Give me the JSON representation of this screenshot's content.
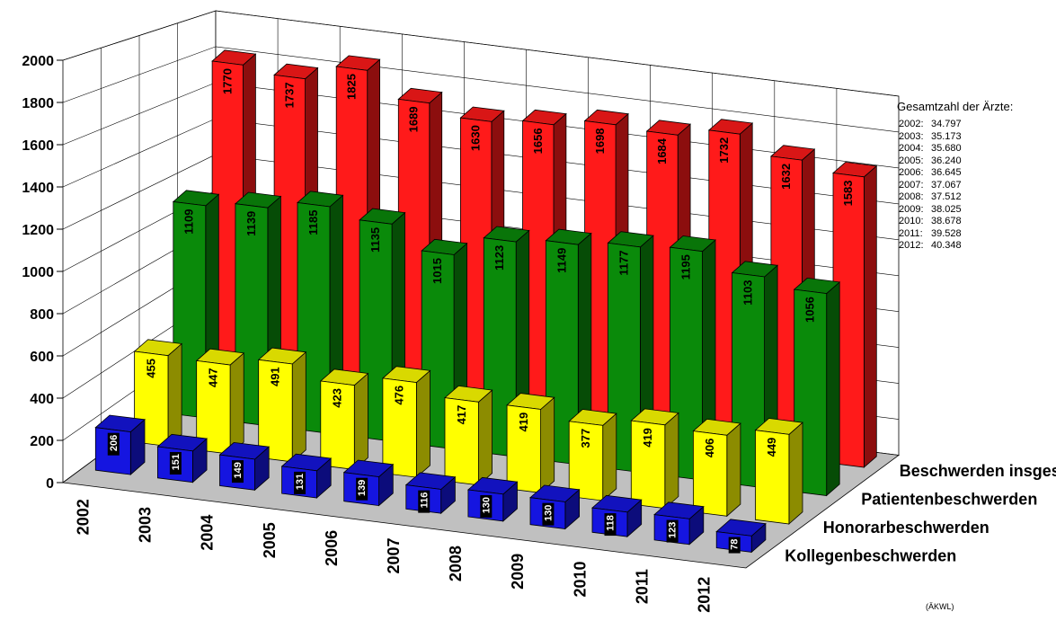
{
  "chart_data": {
    "type": "bar",
    "categories": [
      "2002",
      "2003",
      "2004",
      "2005",
      "2006",
      "2007",
      "2008",
      "2009",
      "2010",
      "2011",
      "2012"
    ],
    "series": [
      {
        "name": "Kollegenbeschwerden",
        "color": "#1515e0",
        "values": [
          206,
          151,
          149,
          131,
          139,
          116,
          130,
          130,
          118,
          123,
          78
        ]
      },
      {
        "name": "Honorarbeschwerden",
        "color": "#ffff00",
        "values": [
          455,
          447,
          491,
          423,
          476,
          417,
          419,
          377,
          419,
          406,
          449
        ]
      },
      {
        "name": "Patientenbeschwerden",
        "color": "#0a8a0a",
        "values": [
          1109,
          1139,
          1185,
          1135,
          1015,
          1123,
          1149,
          1177,
          1195,
          1103,
          1056
        ]
      },
      {
        "name": "Beschwerden insgesamt",
        "color": "#ff1a1a",
        "values": [
          1770,
          1737,
          1825,
          1689,
          1630,
          1656,
          1698,
          1684,
          1732,
          1632,
          1583
        ]
      }
    ],
    "ylim": [
      0,
      2000
    ],
    "yticks": [
      "0",
      "200",
      "400",
      "600",
      "800",
      "1000",
      "1200",
      "1400",
      "1600",
      "1800",
      "2000"
    ],
    "grid": true,
    "style": "3d-column"
  },
  "info": {
    "title": "Gesamtzahl der Ärzte:",
    "rows": [
      {
        "year": "2002:",
        "value": "34.797"
      },
      {
        "year": "2003:",
        "value": "35.173"
      },
      {
        "year": "2004:",
        "value": "35.680"
      },
      {
        "year": "2005:",
        "value": "36.240"
      },
      {
        "year": "2006:",
        "value": "36.645"
      },
      {
        "year": "2007:",
        "value": "37.067"
      },
      {
        "year": "2008:",
        "value": "37.512"
      },
      {
        "year": "2009:",
        "value": "38.025"
      },
      {
        "year": "2010:",
        "value": "38.678"
      },
      {
        "year": "2011:",
        "value": "39.528"
      },
      {
        "year": "2012:",
        "value": "40.348"
      }
    ]
  },
  "source": "(ÄKWL)"
}
